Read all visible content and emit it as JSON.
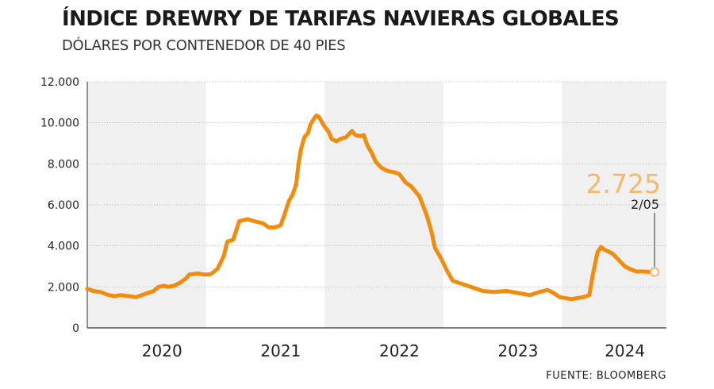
{
  "chart_data": {
    "type": "line",
    "title": "ÍNDICE DREWRY DE TARIFAS NAVIERAS GLOBALES",
    "subtitle": "DÓLARES POR CONTENEDOR DE 40 PIES",
    "source": "FUENTE: BLOOMBERG",
    "xlabel": "",
    "ylabel": "",
    "ylim": [
      0,
      12000
    ],
    "xlim": [
      2019.52,
      2024.4
    ],
    "y_ticks": [
      "0",
      "2.000",
      "4.000",
      "6.000",
      "8.000",
      "10.000",
      "12.000"
    ],
    "y_tick_values": [
      0,
      2000,
      4000,
      6000,
      8000,
      10000,
      12000
    ],
    "x_tick_labels": [
      "2020",
      "2021",
      "2022",
      "2023",
      "2024"
    ],
    "x_tick_centers": [
      2020.15,
      2021.15,
      2022.15,
      2023.15,
      2024.05
    ],
    "shaded_years": [
      [
        2019.52,
        2020.52
      ],
      [
        2021.52,
        2022.52
      ],
      [
        2023.52,
        2024.4
      ]
    ],
    "grid": true,
    "line_color": "#f28c0f",
    "highlight_color": "#f5b96a",
    "shade_color": "#f0f0f0",
    "annotation": {
      "value": "2.725",
      "date": "2/05"
    },
    "series": [
      {
        "x": [
          2019.52,
          2019.57,
          2019.63,
          2019.7,
          2019.75,
          2019.8,
          2019.87,
          2019.93,
          2019.98,
          2020.03,
          2020.08,
          2020.12,
          2020.17,
          2020.2,
          2020.25,
          2020.3,
          2020.35,
          2020.38,
          2020.45,
          2020.5,
          2020.55,
          2020.58,
          2020.62,
          2020.67,
          2020.7,
          2020.75,
          2020.8,
          2020.87,
          2020.93,
          2021.0,
          2021.05,
          2021.1,
          2021.15,
          2021.18,
          2021.22,
          2021.25,
          2021.28,
          2021.3,
          2021.32,
          2021.35,
          2021.38,
          2021.4,
          2021.43,
          2021.45,
          2021.47,
          2021.52,
          2021.55,
          2021.58,
          2021.62,
          2021.65,
          2021.7,
          2021.75,
          2021.78,
          2021.82,
          2021.85,
          2021.88,
          2021.92,
          2021.95,
          2022.0,
          2022.05,
          2022.1,
          2022.15,
          2022.2,
          2022.25,
          2022.32,
          2022.38,
          2022.42,
          2022.45,
          2022.5,
          2022.55,
          2022.6,
          2022.65,
          2022.7,
          2022.75,
          2022.8,
          2022.85,
          2022.95,
          2023.05,
          2023.15,
          2023.25,
          2023.33,
          2023.4,
          2023.45,
          2023.5,
          2023.55,
          2023.6,
          2023.65,
          2023.7,
          2023.75,
          2023.78,
          2023.82,
          2023.85,
          2023.88,
          2023.9,
          2023.92,
          2023.95,
          2024.0,
          2024.05,
          2024.1,
          2024.15,
          2024.2,
          2024.3
        ],
        "values": [
          1900,
          1800,
          1750,
          1600,
          1550,
          1600,
          1550,
          1500,
          1600,
          1700,
          1800,
          2000,
          2050,
          2000,
          2050,
          2200,
          2400,
          2600,
          2650,
          2600,
          2600,
          2700,
          2900,
          3500,
          4200,
          4300,
          5200,
          5300,
          5200,
          5100,
          4900,
          4900,
          5000,
          5500,
          6200,
          6500,
          7000,
          8000,
          8700,
          9300,
          9500,
          9900,
          10200,
          10350,
          10300,
          9800,
          9600,
          9200,
          9100,
          9200,
          9300,
          9600,
          9400,
          9350,
          9400,
          8900,
          8500,
          8100,
          7800,
          7650,
          7600,
          7500,
          7100,
          6900,
          6400,
          5500,
          4700,
          3900,
          3400,
          2800,
          2300,
          2200,
          2100,
          2000,
          1900,
          1800,
          1750,
          1800,
          1700,
          1600,
          1750,
          1850,
          1700,
          1500,
          1450,
          1400,
          1450,
          1500,
          1600,
          2600,
          3700,
          3950,
          3800,
          3750,
          3700,
          3600,
          3300,
          3000,
          2850,
          2750,
          2750,
          2725
        ]
      }
    ]
  }
}
